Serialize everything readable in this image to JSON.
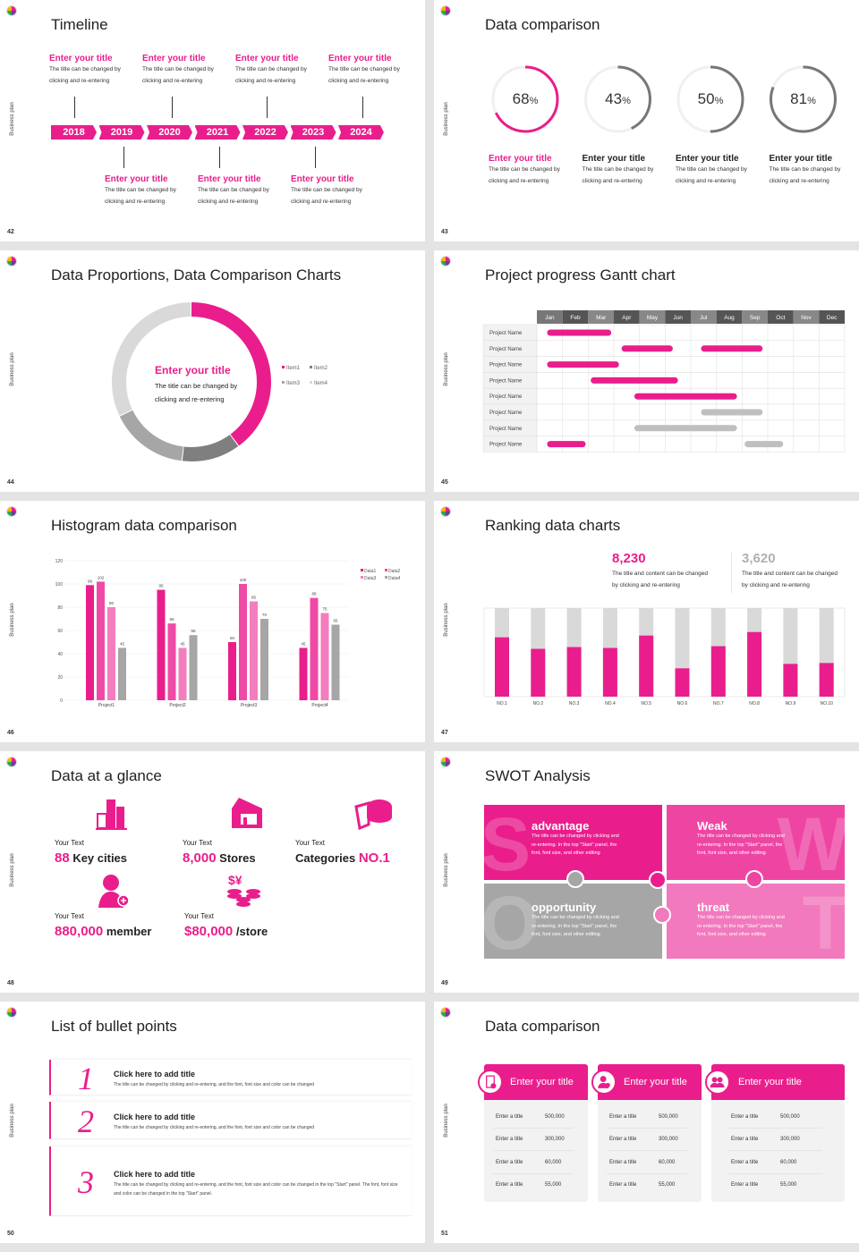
{
  "common": {
    "side_label": "Business plan",
    "accent": "#e91e8c",
    "gray": "#a6a6a6"
  },
  "slides": [
    {
      "page": "42",
      "title": "Timeline",
      "years": [
        "2018",
        "2019",
        "2020",
        "2021",
        "2022",
        "2023",
        "2024"
      ],
      "items": [
        {
          "title": "Enter your title",
          "body1": "The title can be changed by",
          "body2": "clicking and re-entering"
        },
        {
          "title": "Enter your title",
          "body1": "The title can be changed by",
          "body2": "clicking and re-entering"
        },
        {
          "title": "Enter your title",
          "body1": "The title can be changed by",
          "body2": "clicking and re-entering"
        },
        {
          "title": "Enter your title",
          "body1": "The title can be changed by",
          "body2": "clicking and re-entering"
        },
        {
          "title": "Enter your title",
          "body1": "The title can be changed by",
          "body2": "clicking and re-entering"
        },
        {
          "title": "Enter your title",
          "body1": "The title can be changed by",
          "body2": "clicking and re-entering"
        },
        {
          "title": "Enter your title",
          "body1": "The title can be changed by",
          "body2": "clicking and re-entering"
        }
      ]
    },
    {
      "page": "43",
      "title": "Data comparison",
      "items": [
        {
          "value": 68,
          "label": "68",
          "unit": "%",
          "title": "Enter your title",
          "body1": "The title can be changed by",
          "body2": "clicking and re-entering",
          "color": "#e91e8c"
        },
        {
          "value": 43,
          "label": "43",
          "unit": "%",
          "title": "Enter your title",
          "body1": "The title can be changed by",
          "body2": "clicking and re-entering",
          "color": "#777777"
        },
        {
          "value": 50,
          "label": "50",
          "unit": "%",
          "title": "Enter your title",
          "body1": "The title can be changed by",
          "body2": "clicking and re-entering",
          "color": "#777777"
        },
        {
          "value": 81,
          "label": "81",
          "unit": "%",
          "title": "Enter your title",
          "body1": "The title can be changed by",
          "body2": "clicking and re-entering",
          "color": "#777777"
        }
      ]
    },
    {
      "page": "44",
      "title": "Data Proportions, Data Comparison Charts",
      "center_title": "Enter your title",
      "center_body1": "The title can be changed by",
      "center_body2": "clicking and re-entering"
    },
    {
      "page": "45",
      "title": "Project progress Gantt chart"
    },
    {
      "page": "46",
      "title": "Histogram data comparison"
    },
    {
      "page": "47",
      "title": "Ranking data charts",
      "stats": [
        {
          "value": "8,230",
          "body1": "The title and content can be changed",
          "body2": "by clicking and re-entering",
          "color": "#e91e8c"
        },
        {
          "value": "3,620",
          "body1": "The title and content can be changed",
          "body2": "by clicking and re-entering",
          "color": "#b0b0b0"
        }
      ]
    },
    {
      "page": "48",
      "title": "Data at a glance",
      "items": [
        {
          "label": "Your Text",
          "num": "88",
          "text": "Key cities",
          "icon": "city-buildings-icon"
        },
        {
          "label": "Your Text",
          "num": "8,000",
          "text": "Stores",
          "icon": "store-icon"
        },
        {
          "label": "Your Text",
          "num": "NO.1",
          "text": "Categories",
          "icon": "pie-chart-3d-icon"
        },
        {
          "label": "Your Text",
          "num": "880,000",
          "text": "member",
          "icon": "user-add-icon"
        },
        {
          "label": "Your Text",
          "num": "$80,000",
          "text": "/store",
          "icon": "coins-currency-icon"
        }
      ]
    },
    {
      "page": "49",
      "title": "SWOT Analysis",
      "items": [
        {
          "letter": "S",
          "title": "advantage",
          "body1": "The title can be changed by clicking and",
          "body2": "re-entering. In the top \"Start\" panel, the",
          "body3": "font, font size, and other editing",
          "color": "#e91e8c"
        },
        {
          "letter": "W",
          "title": "Weak",
          "body1": "The title can be changed by clicking and",
          "body2": "re-entering. In the top \"Start\" panel, the",
          "body3": "font, font size, and other editing",
          "color": "#ee45a3"
        },
        {
          "letter": "O",
          "title": "opportunity",
          "body1": "The title can be changed by clicking and",
          "body2": "re-entering. In the top \"Start\" panel, the",
          "body3": "font, font size, and other editing",
          "color": "#a6a6a6"
        },
        {
          "letter": "T",
          "title": "threat",
          "body1": "The title can be changed by clicking and",
          "body2": "re-entering. In the top \"Start\" panel, the",
          "body3": "font, font size, and other editing",
          "color": "#f279bd"
        }
      ]
    },
    {
      "page": "50",
      "title": "List of bullet points",
      "items": [
        {
          "num": "1",
          "title": "Click here to add title",
          "body": "The title can be changed by clicking and re-entering, and the font, font size and color can be changed"
        },
        {
          "num": "2",
          "title": "Click here to add title",
          "body": "The title can be changed by clicking and re-entering, and the font, font size and color can be changed"
        },
        {
          "num": "3",
          "title": "Click here to add title",
          "body": "The title can be changed by clicking and re-entering, and the font, font size and color can be changed in the top \"Start\" panel. The font, font size and color can be changed in the top \"Start\" panel."
        }
      ]
    },
    {
      "page": "51",
      "title": "Data comparison",
      "cards": [
        {
          "title": "Enter your title",
          "icon": "tablet-user-icon",
          "rows": [
            [
              "Enter a title",
              "500,000"
            ],
            [
              "Enter a title",
              "300,000"
            ],
            [
              "Enter a title",
              "60,000"
            ],
            [
              "Enter a title",
              "55,000"
            ]
          ]
        },
        {
          "title": "Enter your title",
          "icon": "user-add-icon",
          "rows": [
            [
              "Enter a title",
              "500,000"
            ],
            [
              "Enter a title",
              "300,000"
            ],
            [
              "Enter a title",
              "60,000"
            ],
            [
              "Enter a title",
              "55,000"
            ]
          ]
        },
        {
          "title": "Enter your title",
          "icon": "users-group-icon",
          "rows": [
            [
              "Enter a title",
              "500,000"
            ],
            [
              "Enter a title",
              "300,000"
            ],
            [
              "Enter a title",
              "60,000"
            ],
            [
              "Enter a title",
              "55,000"
            ]
          ]
        }
      ]
    }
  ],
  "chart_data": [
    {
      "type": "pie",
      "variant": "donut",
      "categories": [
        "Item1",
        "Item2",
        "Item3",
        "Item4"
      ],
      "values": [
        40,
        12,
        16,
        32
      ],
      "colors": [
        "#e91e8c",
        "#7f7f7f",
        "#a6a6a6",
        "#d9d9d9"
      ],
      "legend": "right"
    },
    {
      "type": "gantt",
      "months": [
        "Jan",
        "Feb",
        "Mar",
        "Apr",
        "May",
        "Jun",
        "Jul",
        "Aug",
        "Sep",
        "Oct",
        "Nov",
        "Dec"
      ],
      "rows": [
        {
          "label": "Project Name",
          "bars": [
            {
              "start": 0.4,
              "end": 2.9,
              "color": "#e91e8c"
            }
          ]
        },
        {
          "label": "Project Name",
          "bars": [
            {
              "start": 3.3,
              "end": 5.3,
              "color": "#e91e8c"
            },
            {
              "start": 6.4,
              "end": 8.8,
              "color": "#e91e8c"
            }
          ]
        },
        {
          "label": "Project Name",
          "bars": [
            {
              "start": 0.4,
              "end": 3.2,
              "color": "#e91e8c"
            }
          ]
        },
        {
          "label": "Project Name",
          "bars": [
            {
              "start": 2.1,
              "end": 5.5,
              "color": "#e91e8c"
            }
          ]
        },
        {
          "label": "Project Name",
          "bars": [
            {
              "start": 3.8,
              "end": 7.8,
              "color": "#e91e8c"
            }
          ]
        },
        {
          "label": "Project Name",
          "bars": [
            {
              "start": 6.4,
              "end": 8.8,
              "color": "#bfbfbf"
            }
          ]
        },
        {
          "label": "Project Name",
          "bars": [
            {
              "start": 3.8,
              "end": 7.8,
              "color": "#bfbfbf"
            }
          ]
        },
        {
          "label": "Project Name",
          "bars": [
            {
              "start": 0.4,
              "end": 1.9,
              "color": "#e91e8c"
            },
            {
              "start": 8.1,
              "end": 9.6,
              "color": "#bfbfbf"
            }
          ]
        }
      ]
    },
    {
      "type": "bar",
      "categories": [
        "Project1",
        "Project2",
        "Project3",
        "Project4"
      ],
      "series": [
        {
          "name": "Data1",
          "values": [
            99,
            95,
            50,
            45
          ],
          "color": "#e91e8c"
        },
        {
          "name": "Data2",
          "values": [
            102,
            66,
            100,
            88
          ],
          "color": "#ef4aa6"
        },
        {
          "name": "Data3",
          "values": [
            80,
            45,
            85,
            75
          ],
          "color": "#f37dbe"
        },
        {
          "name": "Data4",
          "values": [
            45,
            56,
            70,
            65
          ],
          "color": "#a6a6a6"
        }
      ],
      "ylim": [
        0,
        120
      ],
      "yticks": [
        0,
        20,
        40,
        60,
        80,
        100,
        120
      ],
      "grid": true,
      "legend": "top-right"
    },
    {
      "type": "bar",
      "variant": "stacked-percent",
      "categories": [
        "NO.1",
        "NO.2",
        "NO.3",
        "NO.4",
        "NO.5",
        "NO.6",
        "NO.7",
        "NO.8",
        "NO.9",
        "NO.10"
      ],
      "values": [
        67,
        54,
        56,
        55,
        69,
        32,
        57,
        73,
        37,
        38
      ],
      "ylim": [
        0,
        100
      ]
    }
  ]
}
